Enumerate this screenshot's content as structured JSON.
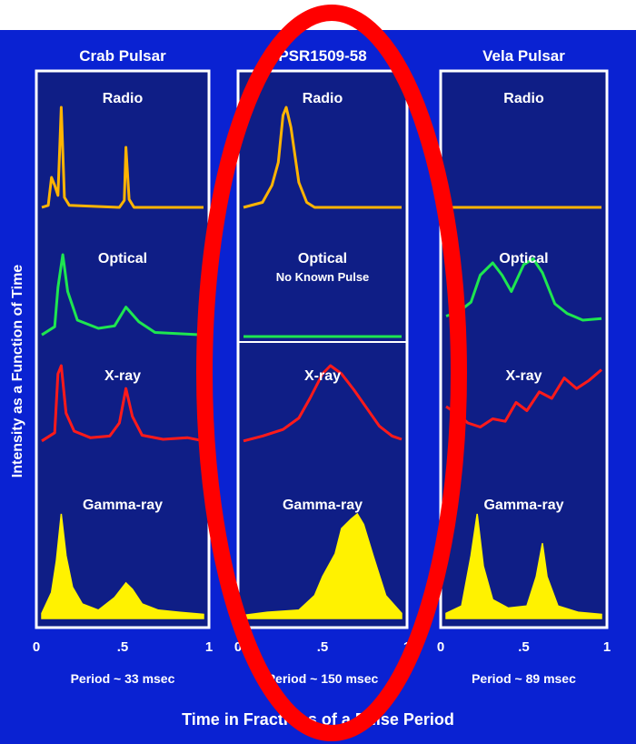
{
  "chart_data": {
    "type": "line",
    "y_axis_label": "Intensity as a Function of Time",
    "x_axis_label": "Time in Fractions of a Pulse Period",
    "x_range": [
      0,
      1
    ],
    "x_ticks": [
      "0",
      ".5",
      "1"
    ],
    "colors": {
      "background": "#0a22d2",
      "panel": "#0f1e86",
      "panel_border": "#ffffff",
      "radio": "#ffb400",
      "optical": "#1ee650",
      "xray": "#ff1a1a",
      "gamma": "#fff200",
      "annotation_ellipse": "#ff0000"
    },
    "panels": [
      {
        "title": "Crab Pulsar",
        "period_label": "Period ~ 33 msec",
        "bands": [
          {
            "name": "Radio",
            "color": "#ffb400",
            "values": [
              [
                0,
                0
              ],
              [
                0.04,
                0.02
              ],
              [
                0.06,
                0.3
              ],
              [
                0.08,
                0.22
              ],
              [
                0.1,
                0.12
              ],
              [
                0.12,
                1.0
              ],
              [
                0.14,
                0.1
              ],
              [
                0.17,
                0.02
              ],
              [
                0.48,
                0
              ],
              [
                0.51,
                0.07
              ],
              [
                0.52,
                0.6
              ],
              [
                0.54,
                0.08
              ],
              [
                0.57,
                0
              ],
              [
                1,
                0
              ]
            ]
          },
          {
            "name": "Optical",
            "color": "#1ee650",
            "values": [
              [
                0,
                0.02
              ],
              [
                0.08,
                0.12
              ],
              [
                0.1,
                0.6
              ],
              [
                0.13,
                1.0
              ],
              [
                0.16,
                0.55
              ],
              [
                0.22,
                0.2
              ],
              [
                0.35,
                0.1
              ],
              [
                0.45,
                0.13
              ],
              [
                0.52,
                0.36
              ],
              [
                0.6,
                0.18
              ],
              [
                0.7,
                0.05
              ],
              [
                1,
                0.02
              ]
            ]
          },
          {
            "name": "X-ray",
            "color": "#ff1a1a",
            "values": [
              [
                0,
                0.08
              ],
              [
                0.08,
                0.18
              ],
              [
                0.1,
                0.9
              ],
              [
                0.12,
                1.0
              ],
              [
                0.15,
                0.42
              ],
              [
                0.2,
                0.2
              ],
              [
                0.3,
                0.12
              ],
              [
                0.42,
                0.14
              ],
              [
                0.48,
                0.3
              ],
              [
                0.52,
                0.72
              ],
              [
                0.56,
                0.38
              ],
              [
                0.62,
                0.15
              ],
              [
                0.75,
                0.1
              ],
              [
                0.9,
                0.12
              ],
              [
                1,
                0.08
              ]
            ]
          },
          {
            "name": "Gamma-ray",
            "color": "#fff200",
            "values": [
              [
                0,
                0.05
              ],
              [
                0.06,
                0.25
              ],
              [
                0.09,
                0.55
              ],
              [
                0.12,
                1.0
              ],
              [
                0.15,
                0.6
              ],
              [
                0.19,
                0.3
              ],
              [
                0.25,
                0.14
              ],
              [
                0.35,
                0.08
              ],
              [
                0.45,
                0.2
              ],
              [
                0.52,
                0.34
              ],
              [
                0.56,
                0.28
              ],
              [
                0.62,
                0.14
              ],
              [
                0.72,
                0.08
              ],
              [
                0.85,
                0.06
              ],
              [
                1,
                0.04
              ]
            ]
          }
        ]
      },
      {
        "title": "PSR1509-58",
        "period_label": "Period ~ 150 msec",
        "bands": [
          {
            "name": "Radio",
            "color": "#ffb400",
            "values": [
              [
                0,
                0
              ],
              [
                0.12,
                0.05
              ],
              [
                0.18,
                0.22
              ],
              [
                0.22,
                0.45
              ],
              [
                0.25,
                0.92
              ],
              [
                0.27,
                1.0
              ],
              [
                0.3,
                0.8
              ],
              [
                0.35,
                0.25
              ],
              [
                0.4,
                0.05
              ],
              [
                0.45,
                0
              ],
              [
                1,
                0
              ]
            ]
          },
          {
            "name": "Optical",
            "subtitle": "No Known Pulse",
            "color": "#1ee650",
            "values": [
              [
                0,
                0
              ],
              [
                1,
                0
              ]
            ]
          },
          {
            "name": "X-ray",
            "color": "#ff1a1a",
            "values": [
              [
                0,
                0.08
              ],
              [
                0.12,
                0.14
              ],
              [
                0.25,
                0.22
              ],
              [
                0.35,
                0.36
              ],
              [
                0.42,
                0.6
              ],
              [
                0.5,
                0.9
              ],
              [
                0.55,
                1.0
              ],
              [
                0.62,
                0.9
              ],
              [
                0.7,
                0.7
              ],
              [
                0.78,
                0.48
              ],
              [
                0.86,
                0.26
              ],
              [
                0.94,
                0.14
              ],
              [
                1,
                0.1
              ]
            ]
          },
          {
            "name": "Gamma-ray",
            "color": "#fff200",
            "values": [
              [
                0,
                0.03
              ],
              [
                0.15,
                0.06
              ],
              [
                0.35,
                0.08
              ],
              [
                0.45,
                0.22
              ],
              [
                0.5,
                0.4
              ],
              [
                0.58,
                0.62
              ],
              [
                0.62,
                0.86
              ],
              [
                0.68,
                0.95
              ],
              [
                0.72,
                1.0
              ],
              [
                0.76,
                0.9
              ],
              [
                0.82,
                0.6
              ],
              [
                0.9,
                0.22
              ],
              [
                1,
                0.05
              ]
            ]
          }
        ]
      },
      {
        "title": "Vela Pulsar",
        "period_label": "Period ~ 89 msec",
        "bands": [
          {
            "name": "Radio",
            "color": "#ffb400",
            "values": [
              [
                0,
                0
              ],
              [
                1,
                0
              ]
            ]
          },
          {
            "name": "Optical",
            "color": "#1ee650",
            "values": [
              [
                0,
                0.25
              ],
              [
                0.08,
                0.3
              ],
              [
                0.16,
                0.42
              ],
              [
                0.22,
                0.75
              ],
              [
                0.3,
                0.9
              ],
              [
                0.36,
                0.75
              ],
              [
                0.42,
                0.55
              ],
              [
                0.5,
                0.88
              ],
              [
                0.56,
                0.95
              ],
              [
                0.62,
                0.78
              ],
              [
                0.7,
                0.4
              ],
              [
                0.78,
                0.28
              ],
              [
                0.88,
                0.2
              ],
              [
                1,
                0.22
              ]
            ]
          },
          {
            "name": "X-ray",
            "color": "#ff1a1a",
            "values": [
              [
                0,
                0.5
              ],
              [
                0.08,
                0.4
              ],
              [
                0.14,
                0.3
              ],
              [
                0.22,
                0.25
              ],
              [
                0.3,
                0.35
              ],
              [
                0.38,
                0.32
              ],
              [
                0.45,
                0.55
              ],
              [
                0.52,
                0.45
              ],
              [
                0.6,
                0.68
              ],
              [
                0.68,
                0.6
              ],
              [
                0.76,
                0.85
              ],
              [
                0.84,
                0.72
              ],
              [
                0.92,
                0.82
              ],
              [
                1,
                0.95
              ]
            ]
          },
          {
            "name": "Gamma-ray",
            "color": "#fff200",
            "values": [
              [
                0,
                0.05
              ],
              [
                0.1,
                0.12
              ],
              [
                0.16,
                0.6
              ],
              [
                0.2,
                1.0
              ],
              [
                0.24,
                0.5
              ],
              [
                0.3,
                0.18
              ],
              [
                0.4,
                0.1
              ],
              [
                0.52,
                0.12
              ],
              [
                0.58,
                0.4
              ],
              [
                0.62,
                0.72
              ],
              [
                0.65,
                0.4
              ],
              [
                0.72,
                0.12
              ],
              [
                0.85,
                0.06
              ],
              [
                1,
                0.04
              ]
            ]
          }
        ]
      }
    ]
  }
}
